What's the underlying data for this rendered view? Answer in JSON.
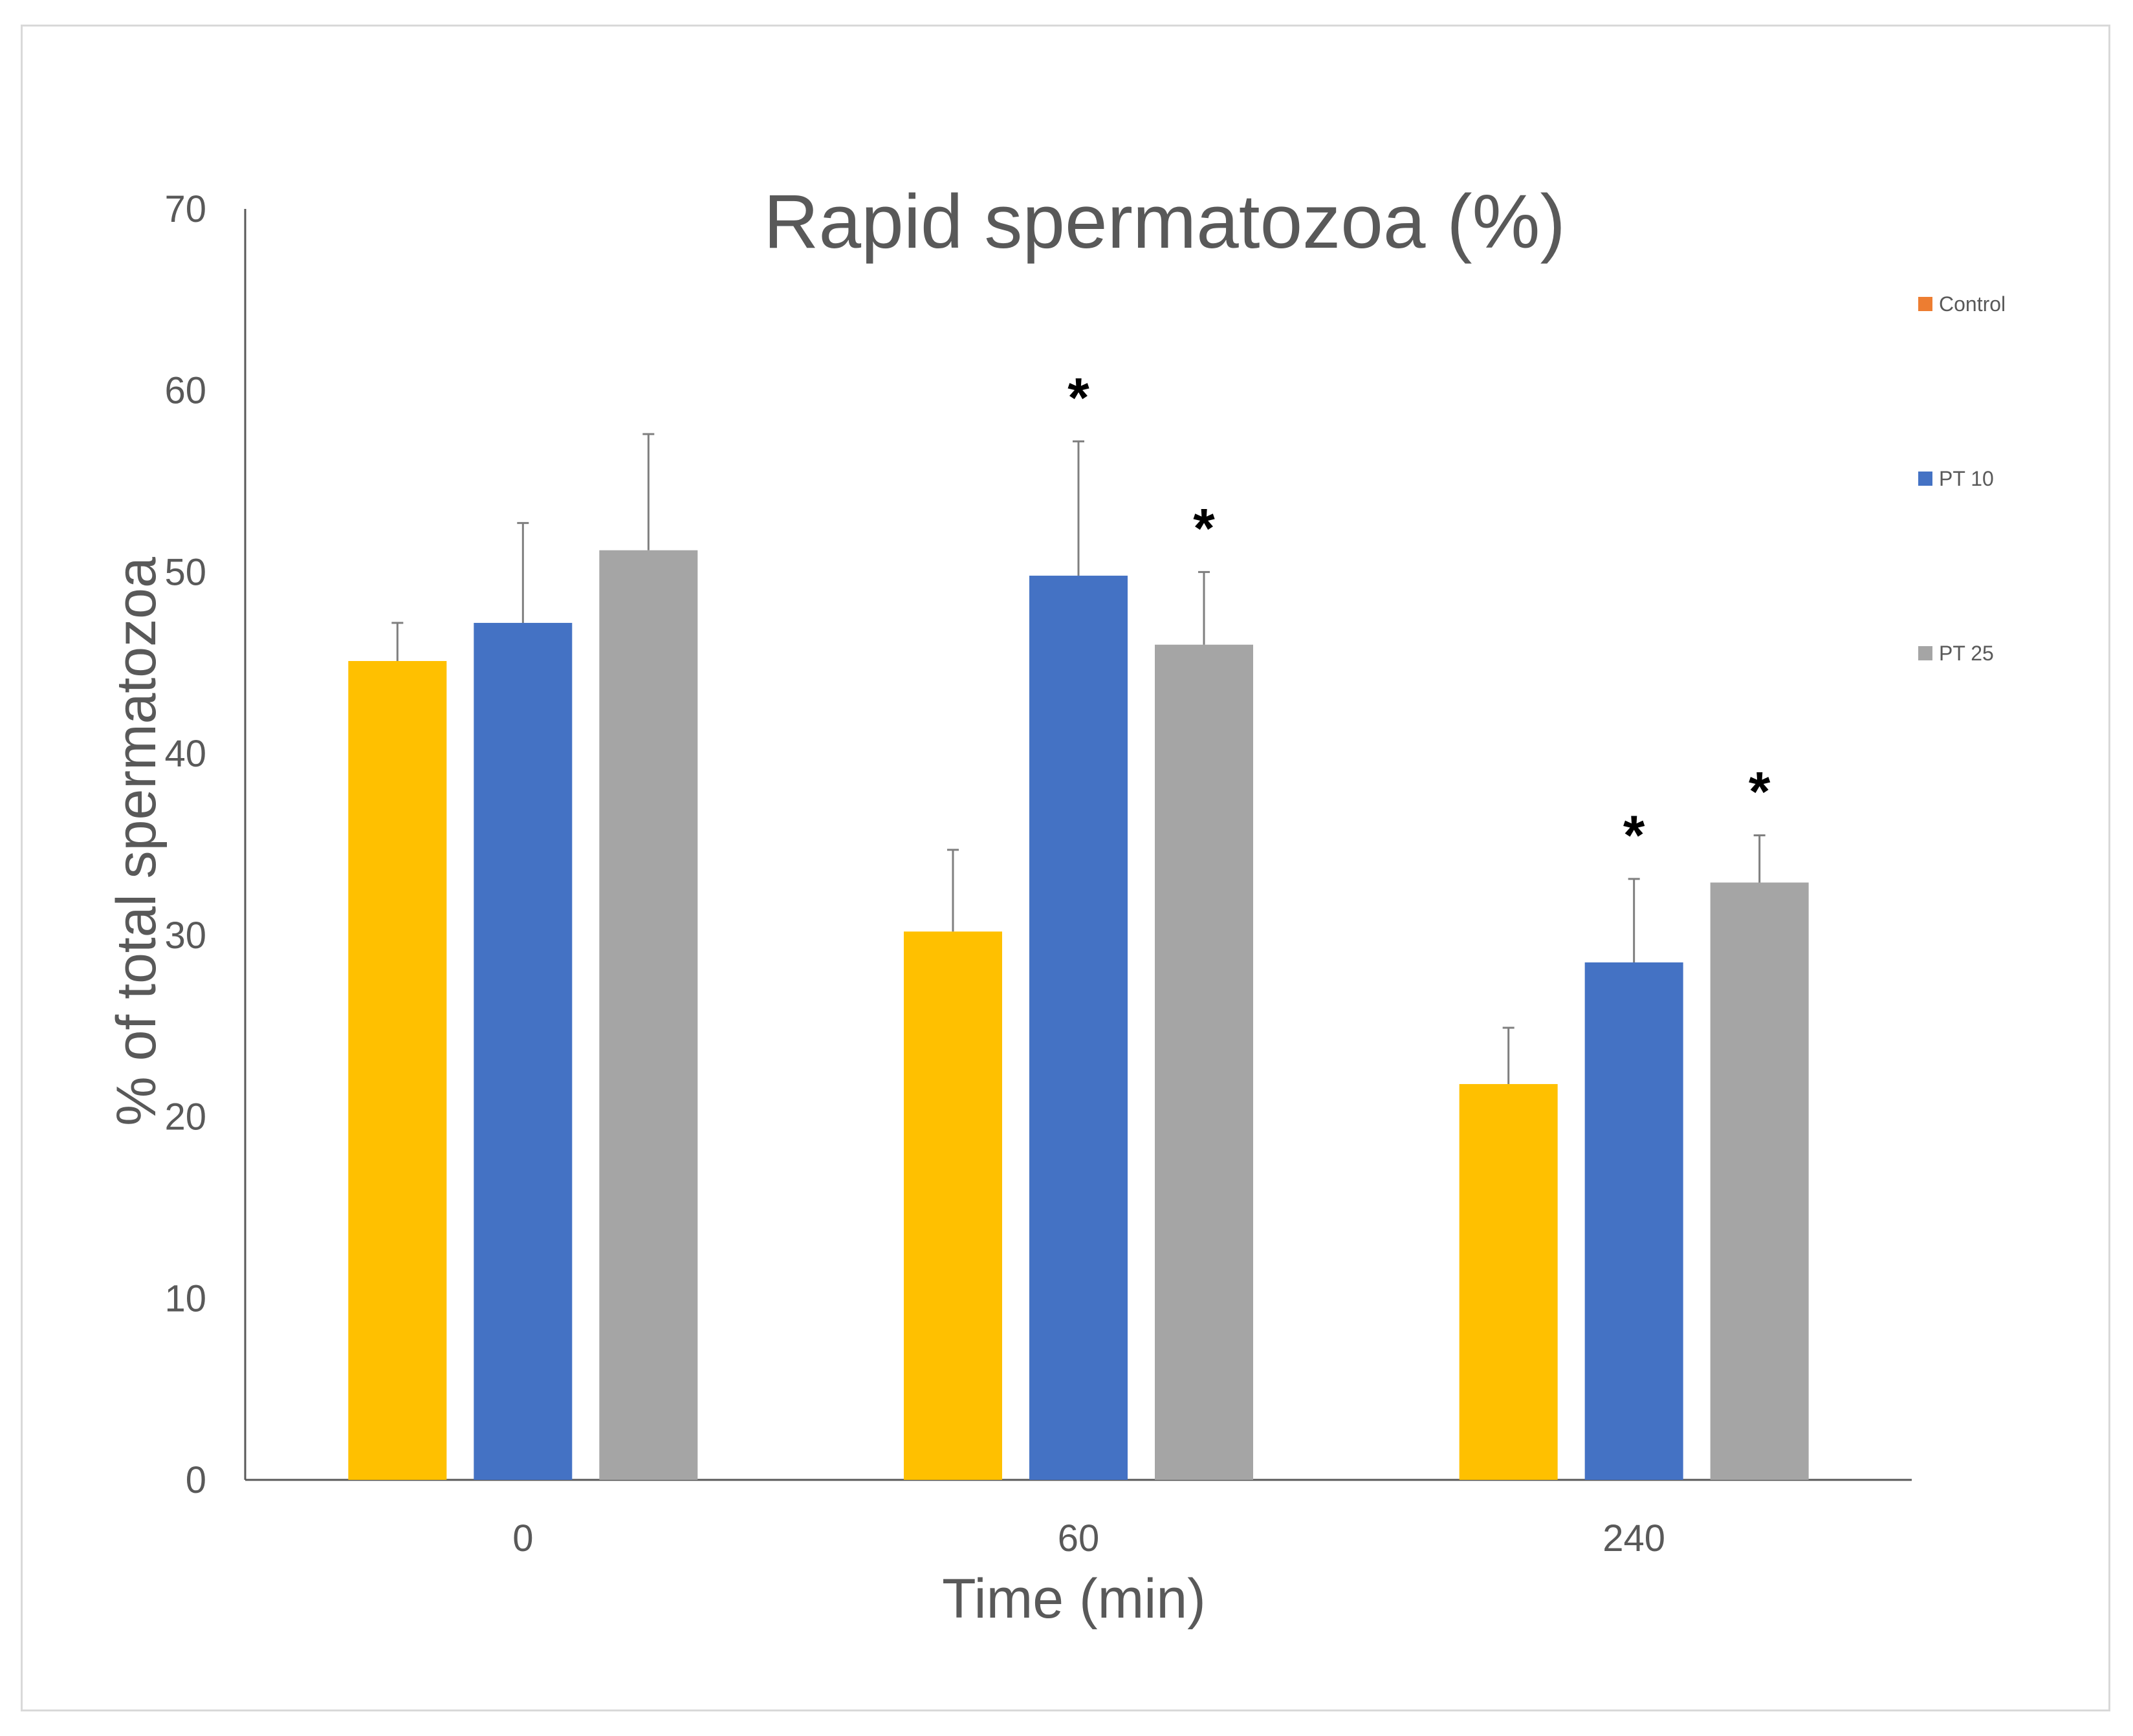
{
  "chart_data": {
    "type": "bar",
    "title": "Rapid spermatozoa (%)",
    "xlabel": "Time (min)",
    "ylabel": "% of total spermatozoa",
    "categories": [
      "0",
      "60",
      "240"
    ],
    "ylim": [
      0,
      70
    ],
    "yticks": [
      0,
      10,
      20,
      30,
      40,
      50,
      60,
      70
    ],
    "grid": false,
    "legend_position": "right",
    "legend": [
      {
        "name": "Control",
        "color": "#ED7D31"
      },
      {
        "name": "PT 10",
        "color": "#4472C4"
      },
      {
        "name": "PT 25",
        "color": "#A5A5A5"
      }
    ],
    "series": [
      {
        "color": "#FFC000",
        "values": [
          45.1,
          30.2,
          21.8
        ],
        "errors": [
          2.1,
          4.5,
          3.1
        ],
        "significant": [
          false,
          false,
          false
        ]
      },
      {
        "color": "#4472C4",
        "values": [
          47.2,
          49.8,
          28.5
        ],
        "errors": [
          5.5,
          7.4,
          4.6
        ],
        "significant": [
          false,
          true,
          true
        ]
      },
      {
        "color": "#A5A5A5",
        "values": [
          51.2,
          46.0,
          32.9
        ],
        "errors": [
          6.4,
          4.0,
          2.6
        ],
        "significant": [
          false,
          true,
          true
        ]
      }
    ],
    "significance_marker": "*"
  }
}
